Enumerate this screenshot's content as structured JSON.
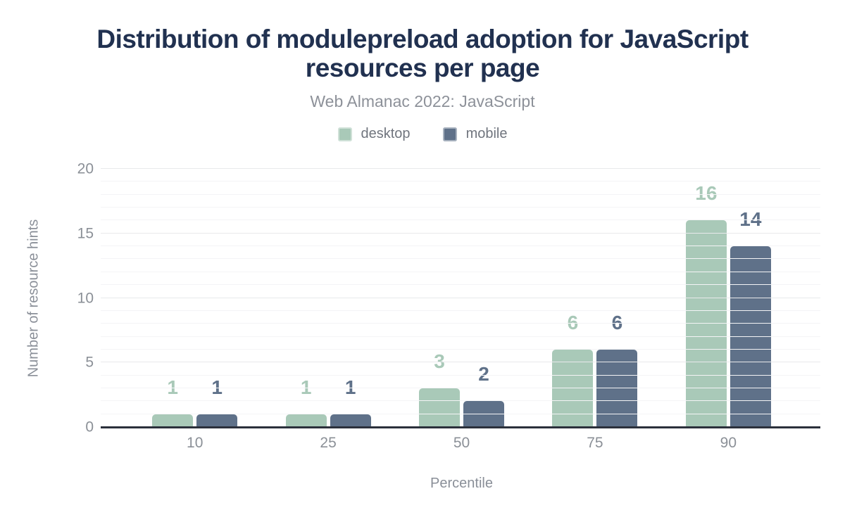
{
  "chart_data": {
    "type": "bar",
    "title": "Distribution of modulepreload adoption for JavaScript resources per page",
    "subtitle": "Web Almanac 2022: JavaScript",
    "xlabel": "Percentile",
    "ylabel": "Number of resource hints",
    "categories": [
      "10",
      "25",
      "50",
      "75",
      "90"
    ],
    "series": [
      {
        "name": "desktop",
        "color": "#a9c9b8",
        "values": [
          1,
          1,
          3,
          6,
          16
        ]
      },
      {
        "name": "mobile",
        "color": "#5f7189",
        "values": [
          1,
          1,
          2,
          6,
          14
        ]
      }
    ],
    "ylim": [
      0,
      20
    ],
    "yticks": [
      0,
      5,
      10,
      15,
      20
    ],
    "grid": {
      "minor_step": 1,
      "major_step": 5,
      "orientation": "horizontal"
    },
    "legend_position": "top",
    "value_labels": "above-bars"
  },
  "colors": {
    "title_text": "#213150",
    "subtitle_text": "#8d9199",
    "axis_text": "#8b9097",
    "axis_line": "#2b303b",
    "grid_minor": "#f4f4f6",
    "grid_major": "#e8e9eb",
    "background": "#ffffff"
  }
}
